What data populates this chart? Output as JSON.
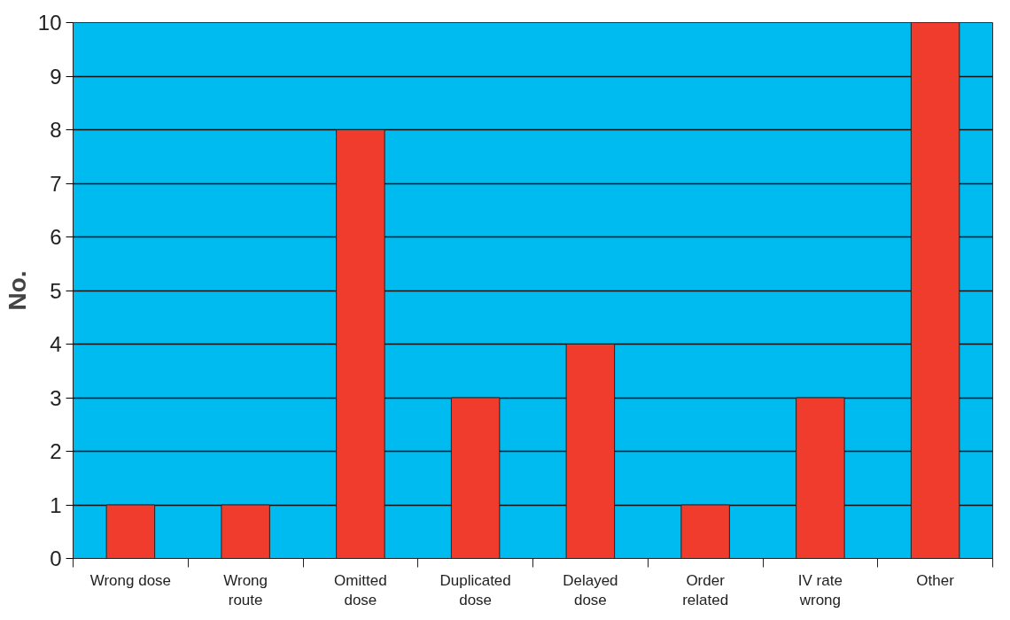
{
  "chart_data": {
    "type": "bar",
    "ylabel": "No.",
    "categories": [
      "Wrong dose",
      "Wrong route",
      "Omitted dose",
      "Duplicated dose",
      "Delayed dose",
      "Order related",
      "IV rate wrong",
      "Other"
    ],
    "values": [
      1,
      1,
      8,
      3,
      4,
      1,
      3,
      10
    ],
    "color": "#f03c2c",
    "ylim": [
      0,
      10
    ],
    "yticks": [
      0,
      1,
      2,
      3,
      4,
      5,
      6,
      7,
      8,
      9,
      10
    ],
    "grid": "y"
  }
}
